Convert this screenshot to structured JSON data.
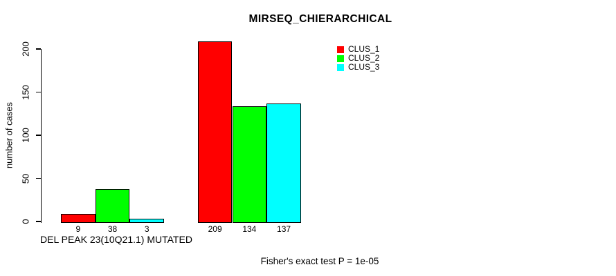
{
  "chart_data": {
    "type": "bar",
    "title": "MIRSEQ_CHIERARCHICAL",
    "ylabel": "number of cases",
    "xlabel": "DEL PEAK 23(10Q21.1) MUTATED",
    "annotation": "Fisher's exact test P = 1e-05",
    "ylim": [
      0,
      200
    ],
    "yticks": [
      0,
      50,
      100,
      150,
      200
    ],
    "grid": false,
    "legend_position": "top-right",
    "background_color": "#ffffff",
    "bar_border_color": "#000000",
    "series": [
      {
        "name": "CLUS_1",
        "color": "#ff0000",
        "values": [
          9,
          209
        ]
      },
      {
        "name": "CLUS_2",
        "color": "#00ff00",
        "values": [
          38,
          134
        ]
      },
      {
        "name": "CLUS_3",
        "color": "#00ffff",
        "values": [
          3,
          137
        ]
      }
    ],
    "bar_value_labels_shown": true
  }
}
